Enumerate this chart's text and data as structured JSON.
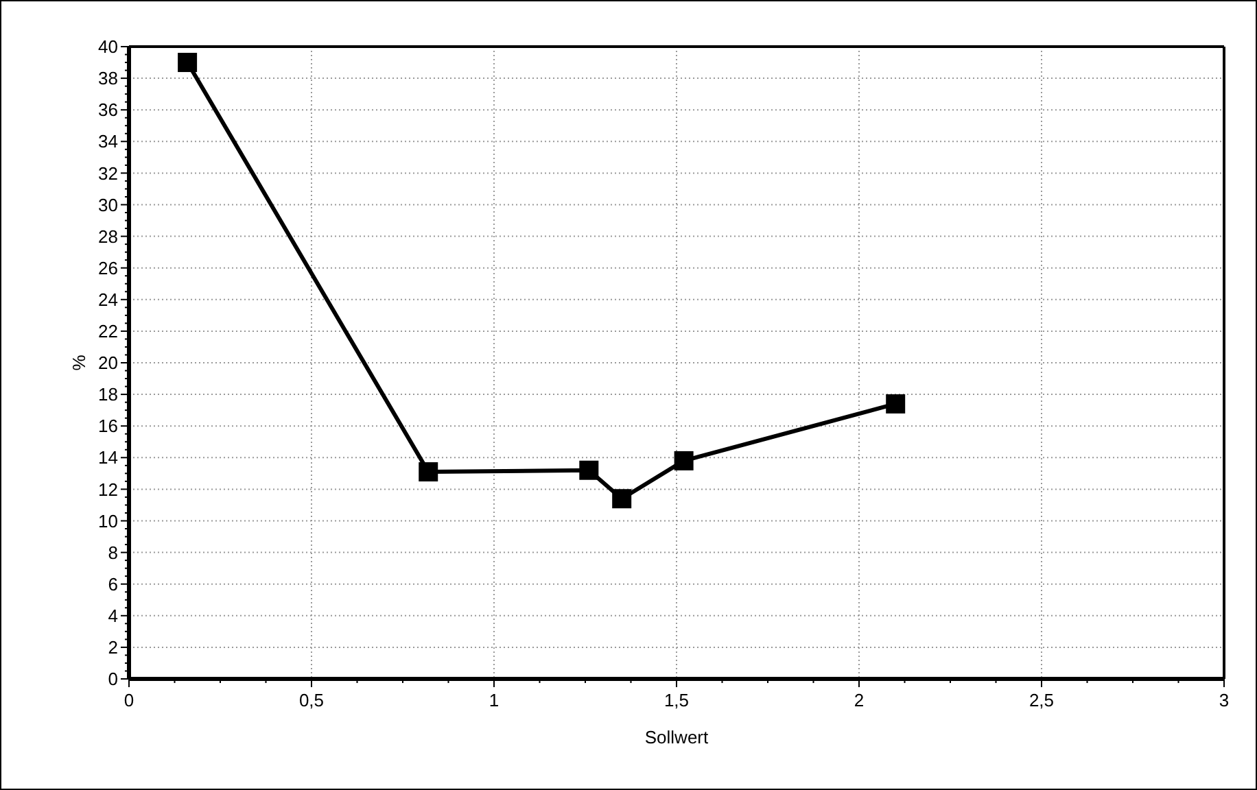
{
  "chart_data": {
    "type": "line",
    "xlabel": "Sollwert",
    "ylabel": "%",
    "x": [
      0.16,
      0.82,
      1.26,
      1.35,
      1.52,
      2.1
    ],
    "series": [
      {
        "color": "#000000",
        "values": [
          39,
          13.1,
          13.2,
          11.4,
          13.8,
          17.4
        ]
      }
    ],
    "xlim": [
      0,
      3
    ],
    "ylim": [
      0,
      40
    ],
    "xticks": [
      0,
      {
        "value": 0.125,
        "label": null
      },
      {
        "value": 0.25,
        "label": null
      },
      {
        "value": 0.375,
        "label": null
      },
      {
        "value": 0.5,
        "label": "0,5"
      },
      {
        "value": 0.625,
        "label": null
      },
      {
        "value": 0.75,
        "label": null
      },
      {
        "value": 0.875,
        "label": null
      },
      1,
      {
        "value": 1.125,
        "label": null
      },
      {
        "value": 1.25,
        "label": null
      },
      {
        "value": 1.375,
        "label": null
      },
      {
        "value": 1.5,
        "label": "1,5"
      },
      {
        "value": 1.625,
        "label": null
      },
      {
        "value": 1.75,
        "label": null
      },
      {
        "value": 1.875,
        "label": null
      },
      2,
      {
        "value": 2.125,
        "label": null
      },
      {
        "value": 2.25,
        "label": null
      },
      {
        "value": 2.375,
        "label": null
      },
      {
        "value": 2.5,
        "label": "2,5"
      },
      {
        "value": 2.625,
        "label": null
      },
      {
        "value": 2.75,
        "label": null
      },
      {
        "value": 2.875,
        "label": null
      },
      3
    ],
    "yticks": [
      0,
      {
        "value": 0.5,
        "label": null
      },
      {
        "value": 1,
        "label": null
      },
      {
        "value": 1.5,
        "label": null
      },
      2,
      {
        "value": 2.5,
        "label": null
      },
      {
        "value": 3,
        "label": null
      },
      {
        "value": 3.5,
        "label": null
      },
      4,
      {
        "value": 4.5,
        "label": null
      },
      {
        "value": 5,
        "label": null
      },
      {
        "value": 5.5,
        "label": null
      },
      6,
      {
        "value": 6.5,
        "label": null
      },
      {
        "value": 7,
        "label": null
      },
      {
        "value": 7.5,
        "label": null
      },
      8,
      {
        "value": 8.5,
        "label": null
      },
      {
        "value": 9,
        "label": null
      },
      {
        "value": 9.5,
        "label": null
      },
      10,
      {
        "value": 10.5,
        "label": null
      },
      {
        "value": 11,
        "label": null
      },
      {
        "value": 11.5,
        "label": null
      },
      12,
      {
        "value": 12.5,
        "label": null
      },
      {
        "value": 13,
        "label": null
      },
      {
        "value": 13.5,
        "label": null
      },
      14,
      {
        "value": 14.5,
        "label": null
      },
      {
        "value": 15,
        "label": null
      },
      {
        "value": 15.5,
        "label": null
      },
      16,
      {
        "value": 16.5,
        "label": null
      },
      {
        "value": 17,
        "label": null
      },
      {
        "value": 17.5,
        "label": null
      },
      18,
      {
        "value": 18.5,
        "label": null
      },
      {
        "value": 19,
        "label": null
      },
      {
        "value": 19.5,
        "label": null
      },
      20,
      {
        "value": 20.5,
        "label": null
      },
      {
        "value": 21,
        "label": null
      },
      {
        "value": 21.5,
        "label": null
      },
      22,
      {
        "value": 22.5,
        "label": null
      },
      {
        "value": 23,
        "label": null
      },
      {
        "value": 23.5,
        "label": null
      },
      24,
      {
        "value": 24.5,
        "label": null
      },
      {
        "value": 25,
        "label": null
      },
      {
        "value": 25.5,
        "label": null
      },
      26,
      {
        "value": 26.5,
        "label": null
      },
      {
        "value": 27,
        "label": null
      },
      {
        "value": 27.5,
        "label": null
      },
      28,
      {
        "value": 28.5,
        "label": null
      },
      {
        "value": 29,
        "label": null
      },
      {
        "value": 29.5,
        "label": null
      },
      30,
      {
        "value": 30.5,
        "label": null
      },
      {
        "value": 31,
        "label": null
      },
      {
        "value": 31.5,
        "label": null
      },
      32,
      {
        "value": 32.5,
        "label": null
      },
      {
        "value": 33,
        "label": null
      },
      {
        "value": 33.5,
        "label": null
      },
      34,
      {
        "value": 34.5,
        "label": null
      },
      {
        "value": 35,
        "label": null
      },
      {
        "value": 35.5,
        "label": null
      },
      36,
      {
        "value": 36.5,
        "label": null
      },
      {
        "value": 37,
        "label": null
      },
      {
        "value": 37.5,
        "label": null
      },
      38,
      {
        "value": 38.5,
        "label": null
      },
      {
        "value": 39,
        "label": null
      },
      {
        "value": 39.5,
        "label": null
      },
      40
    ],
    "grid": true,
    "marker": "square",
    "line_style": "solid"
  }
}
